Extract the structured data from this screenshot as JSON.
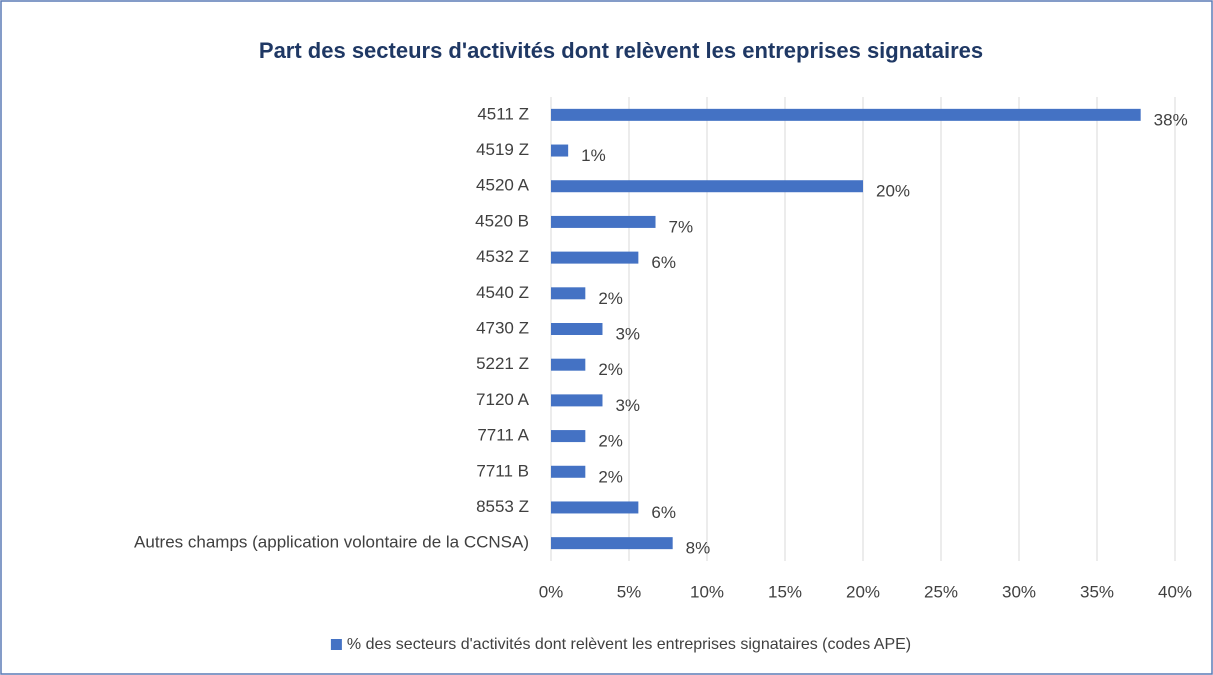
{
  "chart_data": {
    "type": "bar",
    "orientation": "horizontal",
    "title": "Part des secteurs d'activités dont relèvent les entreprises signataires",
    "categories": [
      "4511 Z",
      "4519 Z",
      "4520 A",
      "4520 B",
      "4532 Z",
      "4540 Z",
      "4730 Z",
      "5221 Z",
      "7120 A",
      "7711 A",
      "7711 B",
      "8553 Z",
      "Autres champs (application volontaire de la CCNSA)"
    ],
    "series": [
      {
        "name": "% des secteurs d'activités dont relèvent les entreprises signataires  (codes APE)",
        "color": "#4472c4",
        "values": [
          37.8,
          1.1,
          20.0,
          6.7,
          5.6,
          2.2,
          3.3,
          2.2,
          3.3,
          2.2,
          2.2,
          5.6,
          7.8
        ],
        "value_labels": [
          "38%",
          "1%",
          "20%",
          "7%",
          "6%",
          "2%",
          "3%",
          "2%",
          "3%",
          "2%",
          "2%",
          "6%",
          "8%"
        ]
      }
    ],
    "xlim": [
      0,
      40
    ],
    "xticks": [
      {
        "value": 0,
        "label": "0%"
      },
      {
        "value": 5,
        "label": "5%"
      },
      {
        "value": 10,
        "label": "10%"
      },
      {
        "value": 15,
        "label": "15%"
      },
      {
        "value": 20,
        "label": "20%"
      },
      {
        "value": 25,
        "label": "25%"
      },
      {
        "value": 30,
        "label": "30%"
      },
      {
        "value": 35,
        "label": "35%"
      },
      {
        "value": 40,
        "label": "40%"
      }
    ],
    "grid": true,
    "legend": "bottom"
  }
}
